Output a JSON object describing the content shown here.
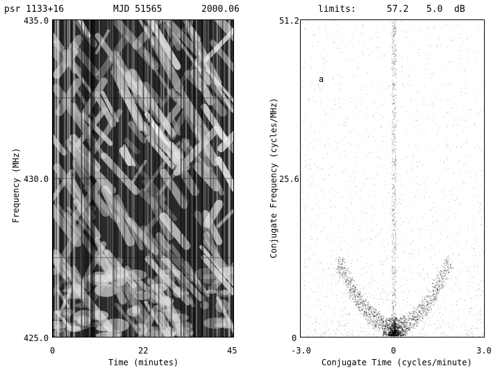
{
  "header": {
    "left": {
      "pulsar": "psr 1133+16",
      "mjd": "MJD 51565",
      "epoch": "2000.06"
    },
    "right": {
      "limits_label": "limits:",
      "limit_max": "57.2",
      "limit_min": "5.0",
      "unit": "dB"
    }
  },
  "panel_tag": "a",
  "chart_data": [
    {
      "type": "heatmap",
      "title": "",
      "xlabel": "Time (minutes)",
      "ylabel": "Frequency (MHz)",
      "xlim": [
        0,
        45
      ],
      "ylim": [
        425.0,
        435.0
      ],
      "x_ticks": [
        "0",
        "22",
        "45"
      ],
      "y_ticks": [
        "425.0",
        "430.0",
        "435.0"
      ],
      "colormap": "grayscale"
    },
    {
      "type": "heatmap",
      "title": "",
      "xlabel": "Conjugate Time (cycles/minute)",
      "ylabel": "Conjugate Frequency (cycles/MHz)",
      "xlim": [
        -3.0,
        3.0
      ],
      "ylim": [
        0,
        51.2
      ],
      "x_ticks": [
        "-3.0",
        "0",
        "3.0"
      ],
      "y_ticks": [
        "0",
        "25.6",
        "51.2"
      ],
      "colormap": "grayscale-inverted"
    }
  ]
}
